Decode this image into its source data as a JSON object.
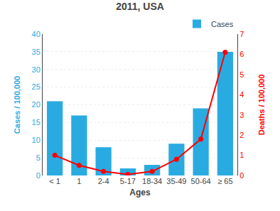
{
  "chart_data": {
    "type": "bar",
    "title": "2011, USA",
    "categories": [
      "< 1",
      "1",
      "2-4",
      "5-17",
      "18-34",
      "35-49",
      "50-64",
      "≥ 65"
    ],
    "series": [
      {
        "name": "Cases",
        "type": "bar",
        "color": "#29ABE2",
        "values": [
          21,
          17,
          8,
          2,
          3,
          9,
          19,
          35
        ]
      },
      {
        "type": "line",
        "axis": "y2",
        "color": "#FF0000",
        "marker": "circle",
        "values": [
          1.0,
          0.5,
          0.2,
          0.05,
          0.2,
          0.8,
          1.8,
          6.1
        ]
      }
    ],
    "xlabel": "Ages",
    "ylabel": "Cases / 100,000",
    "y2label": "Deaths / 100,000",
    "ylim": [
      0,
      40
    ],
    "yticks": [
      0,
      5,
      10,
      15,
      20,
      25,
      30,
      35,
      40
    ],
    "y2lim": [
      0,
      7
    ],
    "y2ticks": [
      0,
      1,
      2,
      3,
      4,
      5,
      6,
      7
    ],
    "grid": true,
    "legend": "upper right"
  }
}
